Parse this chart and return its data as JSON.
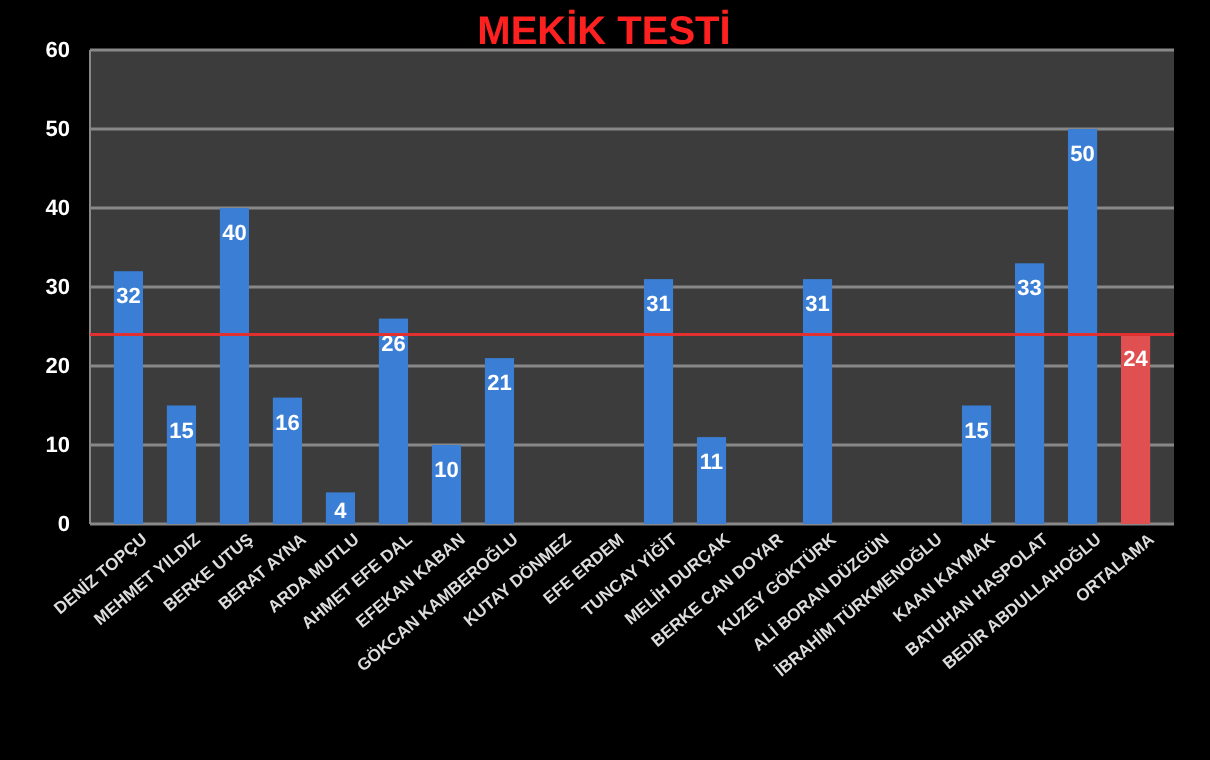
{
  "chart_data": {
    "type": "bar",
    "title": "MEKİK TESTİ",
    "categories": [
      "DENİZ TOPÇU",
      "MEHMET YILDIZ",
      "BERKE UTUŞ",
      "BERAT AYNA",
      "ARDA MUTLU",
      "AHMET EFE DAL",
      "EFEKAN KABAN",
      "GÖKCAN KAMBEROĞLU",
      "KUTAY DÖNMEZ",
      "EFE ERDEM",
      "TUNCAY YİĞİT",
      "MELİH DURÇAK",
      "BERKE CAN DOYAR",
      "KUZEY GÖKTÜRK",
      "ALİ BORAN DÜZGÜN",
      "İBRAHİM TÜRKMENOĞLU",
      "KAAN KAYMAK",
      "BATUHAN HASPOLAT",
      "BEDİR ABDULLAHOĞLU",
      "ORTALAMA"
    ],
    "values": [
      32,
      15,
      40,
      16,
      4,
      26,
      10,
      21,
      null,
      null,
      31,
      11,
      null,
      31,
      null,
      null,
      15,
      33,
      50,
      24
    ],
    "colors": [
      "#3a7fd5",
      "#3a7fd5",
      "#3a7fd5",
      "#3a7fd5",
      "#3a7fd5",
      "#3a7fd5",
      "#3a7fd5",
      "#3a7fd5",
      null,
      null,
      "#3a7fd5",
      "#3a7fd5",
      null,
      "#3a7fd5",
      null,
      null,
      "#3a7fd5",
      "#3a7fd5",
      "#3a7fd5",
      "#e05050"
    ],
    "ylim": [
      0,
      60
    ],
    "yticks": [
      0,
      10,
      20,
      30,
      40,
      50,
      60
    ],
    "grid": "y",
    "data_labels": true,
    "ref_lines": [
      {
        "axis": "y",
        "value": 24,
        "color": "#e03030"
      }
    ]
  }
}
